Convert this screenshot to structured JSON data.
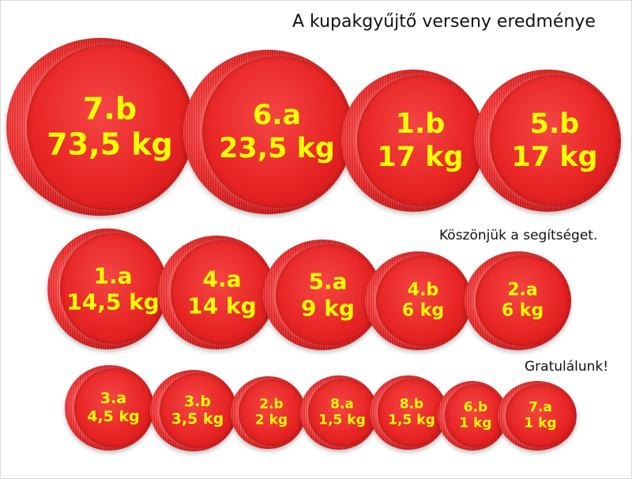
{
  "title": "A kupakgyűjtő verseny eredménye",
  "thanks": "Köszönjük a segítséget.",
  "congrats": "Gratulálunk!",
  "caps": [
    {
      "class": "7.b",
      "weight": "73,5 kg"
    },
    {
      "class": "6.a",
      "weight": "23,5 kg"
    },
    {
      "class": "1.b",
      "weight": "17 kg"
    },
    {
      "class": "5.b",
      "weight": "17 kg"
    },
    {
      "class": "1.a",
      "weight": "14,5 kg"
    },
    {
      "class": "4.a",
      "weight": "14 kg"
    },
    {
      "class": "5.a",
      "weight": "9 kg"
    },
    {
      "class": "4.b",
      "weight": "6 kg"
    },
    {
      "class": "2.a",
      "weight": "6 kg"
    },
    {
      "class": "3.a",
      "weight": "4,5 kg"
    },
    {
      "class": "3.b",
      "weight": "3,5 kg"
    },
    {
      "class": "2.b",
      "weight": "2 kg"
    },
    {
      "class": "8.a",
      "weight": "1,5 kg"
    },
    {
      "class": "8.b",
      "weight": "1,5 kg"
    },
    {
      "class": "6.b",
      "weight": "1 kg"
    },
    {
      "class": "7.a",
      "weight": "1 kg"
    }
  ]
}
